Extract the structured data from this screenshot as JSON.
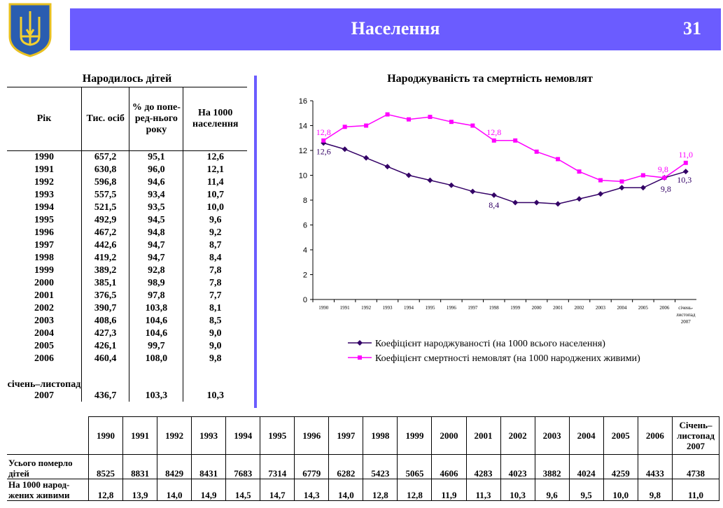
{
  "header": {
    "title": "Населення",
    "page": "31"
  },
  "births_table": {
    "title": "Народилось дітей",
    "columns": [
      "Рік",
      "Тис. осіб",
      "% до попе-ред-нього року",
      "На 1000 населення"
    ],
    "rows": [
      [
        "1990",
        "657,2",
        "95,1",
        "12,6"
      ],
      [
        "1991",
        "630,8",
        "96,0",
        "12,1"
      ],
      [
        "1992",
        "596,8",
        "94,6",
        "11,4"
      ],
      [
        "1993",
        "557,5",
        "93,4",
        "10,7"
      ],
      [
        "1994",
        "521,5",
        "93,5",
        "10,0"
      ],
      [
        "1995",
        "492,9",
        "94,5",
        "9,6"
      ],
      [
        "1996",
        "467,2",
        "94,8",
        "9,2"
      ],
      [
        "1997",
        "442,6",
        "94,7",
        "8,7"
      ],
      [
        "1998",
        "419,2",
        "94,7",
        "8,4"
      ],
      [
        "1999",
        "389,2",
        "92,8",
        "7,8"
      ],
      [
        "2000",
        "385,1",
        "98,9",
        "7,8"
      ],
      [
        "2001",
        "376,5",
        "97,8",
        "7,7"
      ],
      [
        "2002",
        "390,7",
        "103,8",
        "8,1"
      ],
      [
        "2003",
        "408,6",
        "104,6",
        "8,5"
      ],
      [
        "2004",
        "427,3",
        "104,6",
        "9,0"
      ],
      [
        "2005",
        "426,1",
        "99,7",
        "9,0"
      ],
      [
        "2006",
        "460,4",
        "108,0",
        "9,8"
      ],
      [
        "січень–листопад 2007",
        "436,7",
        "103,3",
        "10,3"
      ]
    ]
  },
  "chart_data": {
    "type": "line",
    "title": "Народжуваність та смертність немовлят",
    "categories": [
      "1990",
      "1991",
      "1992",
      "1993",
      "1994",
      "1995",
      "1996",
      "1997",
      "1998",
      "1999",
      "2000",
      "2001",
      "2002",
      "2003",
      "2004",
      "2005",
      "2006",
      "січень-листопад 2007"
    ],
    "ylim": [
      0,
      16
    ],
    "yticks": [
      0,
      2,
      4,
      6,
      8,
      10,
      12,
      14,
      16
    ],
    "legend": "bottom",
    "series": [
      {
        "name": "Коефіцієнт народжуваності (на 1000 всього населення)",
        "color": "#330066",
        "marker": "diamond",
        "values": [
          12.6,
          12.1,
          11.4,
          10.7,
          10.0,
          9.6,
          9.2,
          8.7,
          8.4,
          7.8,
          7.8,
          7.7,
          8.1,
          8.5,
          9.0,
          9.0,
          9.8,
          10.3
        ],
        "labels": {
          "0": "12,6",
          "8": "8,4",
          "16": "9,8",
          "17": "10,3"
        }
      },
      {
        "name": "Коефіцієнт смертності немовлят (на 1000 народжених живими)",
        "color": "#ff00ff",
        "marker": "square",
        "values": [
          12.8,
          13.9,
          14.0,
          14.9,
          14.5,
          14.7,
          14.3,
          14.0,
          12.8,
          12.8,
          11.9,
          11.3,
          10.3,
          9.6,
          9.5,
          10.0,
          9.8,
          11.0
        ],
        "labels": {
          "0": "12,8",
          "8": "12,8",
          "16": "9,8",
          "17": "11,0"
        }
      }
    ]
  },
  "deaths_table": {
    "columns": [
      "1990",
      "1991",
      "1992",
      "1993",
      "1994",
      "1995",
      "1996",
      "1997",
      "1998",
      "1999",
      "2000",
      "2001",
      "2002",
      "2003",
      "2004",
      "2005",
      "2006",
      "Січень–листопад 2007"
    ],
    "rows": [
      {
        "label": "Усього померло дітей",
        "values": [
          "8525",
          "8831",
          "8429",
          "8431",
          "7683",
          "7314",
          "6779",
          "6282",
          "5423",
          "5065",
          "4606",
          "4283",
          "4023",
          "3882",
          "4024",
          "4259",
          "4433",
          "4738"
        ]
      },
      {
        "label": "На 1000 народ-жених живими",
        "values": [
          "12,8",
          "13,9",
          "14,0",
          "14,9",
          "14,5",
          "14,7",
          "14,3",
          "14,0",
          "12,8",
          "12,8",
          "11,9",
          "11,3",
          "10,3",
          "9,6",
          "9,5",
          "10,0",
          "9,8",
          "11,0"
        ]
      }
    ]
  }
}
